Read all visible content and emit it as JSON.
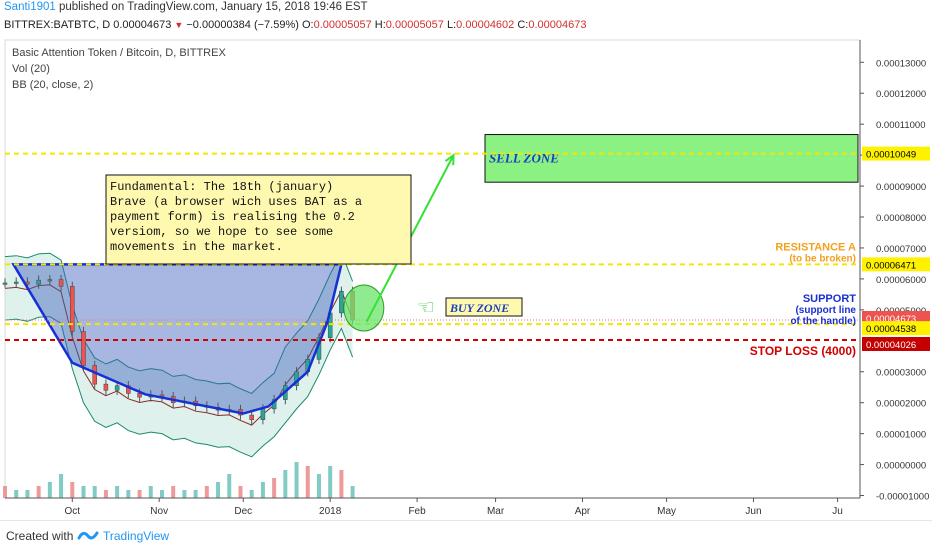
{
  "header": {
    "user": "Santi1901",
    "published_text": " published on TradingView.com, January 15, 2018 19:46 EST",
    "symbol": "BITTREX:BATBTC, D",
    "last": "0.00004673",
    "change": "−0.00000384 (−7.59%)",
    "o_label": "O:",
    "o": "0.00005057",
    "h_label": "H:",
    "h": "0.00005057",
    "l_label": "L:",
    "l": "0.00004602",
    "c_label": "C:",
    "c": "0.00004673"
  },
  "legend": {
    "title": "Basic Attention Token / Bitcoin, D, BITTREX",
    "vol": "Vol (20)",
    "bb": "BB (20, close, 2)"
  },
  "footer": {
    "created_with": "Created with",
    "brand": "TradingView"
  },
  "chart_data": {
    "type": "candlestick",
    "y_axis_ticks": [
      "0.00013000",
      "0.00012000",
      "0.00011000",
      "0.00010000",
      "0.00009000",
      "0.00008000",
      "0.00007000",
      "0.00006000",
      "0.00005000",
      "0.00003000",
      "0.00002000",
      "0.00001000",
      "0.00000000",
      "-0.00001000"
    ],
    "y_axis_tick_values": [
      0.00013,
      0.00012,
      0.00011,
      0.0001,
      9e-05,
      8e-05,
      7e-05,
      6e-05,
      5e-05,
      3e-05,
      2e-05,
      1e-05,
      0,
      -1e-05
    ],
    "ylim": [
      -1.08e-05,
      0.0001372
    ],
    "x_axis_ticks": [
      "Oct",
      "Nov",
      "Dec",
      "2018",
      "Feb",
      "Mar",
      "Apr",
      "May",
      "Jun",
      "Ju"
    ],
    "x_axis_tick_days": [
      24,
      55,
      85,
      116,
      147,
      175,
      206,
      236,
      267,
      297
    ],
    "x_range_days": [
      0,
      305
    ],
    "price_labels": [
      {
        "value": 0.00010049,
        "text": "0.00010049",
        "style": "yellow"
      },
      {
        "value": 6.471e-05,
        "text": "0.00006471",
        "style": "yellow"
      },
      {
        "value": 4.673e-05,
        "text": "0.00004673",
        "style": "red"
      },
      {
        "value": 4.538e-05,
        "text": "0.00004538",
        "style": "yellow"
      },
      {
        "value": 4.026e-05,
        "text": "0.00004026",
        "style": "darkred"
      }
    ],
    "horizontal_lines": [
      {
        "value": 0.00010049,
        "color": "#f5e600",
        "dash": true
      },
      {
        "value": 6.471e-05,
        "color": "#f5e600",
        "dash": true
      },
      {
        "value": 4.538e-05,
        "color": "#f5e600",
        "dash": true
      },
      {
        "value": 4.026e-05,
        "color": "#d00000",
        "dash": true
      },
      {
        "value": 4.673e-05,
        "color": "#e57373",
        "dotted": true
      }
    ],
    "annotations": {
      "fundamental": "Fundamental: The 18th (january) Brave (a browser wich uses BAT as a payment form) is realising the 0.2 versiom, so we hope to see some movements in the market.",
      "sell_zone": "SELL ZONE",
      "sell_zone_range": [
        9.125e-05,
        0.00010665
      ],
      "buy_zone": "BUY ZONE",
      "resistance_title": "RESISTANCE A",
      "resistance_sub": "(to be broken)",
      "support_title": "SUPPORT",
      "support_sub1": "(support line",
      "support_sub2": "of the handle)",
      "stop_loss": "STOP LOSS (4000)"
    },
    "cup_points_days_values": [
      [
        3,
        6.471e-05
      ],
      [
        24,
        3.29e-05
      ],
      [
        50,
        2.27e-05
      ],
      [
        85,
        1.65e-05
      ],
      [
        94,
        1.88e-05
      ],
      [
        108,
        3e-05
      ],
      [
        115,
        4.6e-05
      ],
      [
        120,
        6.471e-05
      ]
    ],
    "arrow_days_values": [
      [
        129,
        4.62e-05
      ],
      [
        160,
        0.0001
      ]
    ],
    "price_series_days": [
      0,
      4,
      8,
      12,
      16,
      20,
      24,
      28,
      32,
      36,
      40,
      44,
      48,
      52,
      56,
      60,
      64,
      68,
      72,
      76,
      80,
      84,
      88,
      92,
      96,
      100,
      104,
      108,
      112,
      116,
      120,
      124
    ],
    "price_series_close": [
      5.87e-05,
      5.9e-05,
      5.83e-05,
      5.96e-05,
      5.98e-05,
      5.76e-05,
      4.3e-05,
      3.2e-05,
      2.6e-05,
      2.4e-05,
      2.55e-05,
      2.3e-05,
      2.18e-05,
      2.25e-05,
      2.2e-05,
      2e-05,
      2.05e-05,
      1.9e-05,
      1.85e-05,
      1.76e-05,
      1.78e-05,
      1.6e-05,
      1.45e-05,
      1.8e-05,
      2.1e-05,
      2.55e-05,
      3e-05,
      3.4e-05,
      4.1e-05,
      4.9e-05,
      5.6e-05,
      4.67e-05
    ],
    "volume": [
      3,
      2,
      2,
      3,
      4,
      6,
      4,
      3,
      3,
      2,
      3,
      2,
      2,
      3,
      2,
      3,
      2,
      2,
      3,
      4,
      6,
      3,
      2,
      4,
      5,
      7,
      9,
      8,
      6,
      8,
      7,
      3
    ]
  }
}
